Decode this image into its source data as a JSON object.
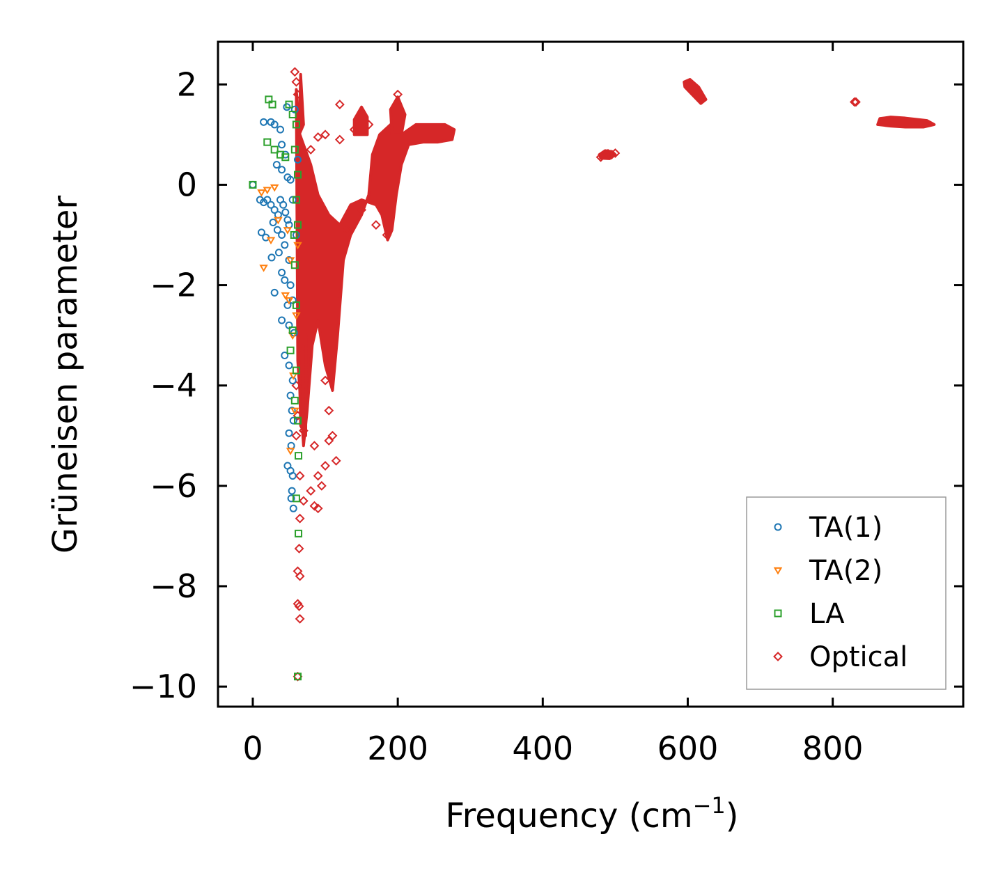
{
  "chart_data": {
    "type": "scatter",
    "title": "",
    "xlabel": "Frequency (cm",
    "xlabel_sup": "−1",
    "xlabel_end": ")",
    "ylabel": "Grüneisen parameter",
    "xlim": [
      -48,
      980
    ],
    "ylim": [
      -10.4,
      2.85
    ],
    "xticks": [
      0,
      200,
      400,
      600,
      800
    ],
    "xtick_labels": [
      "0",
      "200",
      "400",
      "600",
      "800"
    ],
    "yticks": [
      2,
      0,
      -2,
      -4,
      -6,
      -8,
      -10
    ],
    "ytick_labels": [
      "2",
      "0",
      "−2",
      "−4",
      "−6",
      "−8",
      "−10"
    ],
    "legend_position": "bottom-right",
    "series": [
      {
        "name": "TA(1)",
        "marker": "circle",
        "color": "#1f77b4",
        "points": [
          [
            0,
            0
          ],
          [
            15,
            1.25
          ],
          [
            25,
            1.25
          ],
          [
            30,
            1.2
          ],
          [
            38,
            1.1
          ],
          [
            40,
            0.8
          ],
          [
            45,
            0.6
          ],
          [
            33,
            0.4
          ],
          [
            40,
            0.3
          ],
          [
            48,
            0.15
          ],
          [
            52,
            0.1
          ],
          [
            10,
            -0.3
          ],
          [
            15,
            -0.35
          ],
          [
            20,
            -0.3
          ],
          [
            25,
            -0.4
          ],
          [
            30,
            -0.5
          ],
          [
            35,
            -0.6
          ],
          [
            38,
            -0.3
          ],
          [
            42,
            -0.4
          ],
          [
            45,
            -0.55
          ],
          [
            48,
            -0.7
          ],
          [
            50,
            -0.8
          ],
          [
            55,
            -0.3
          ],
          [
            28,
            -0.75
          ],
          [
            34,
            -0.9
          ],
          [
            40,
            -1.0
          ],
          [
            12,
            -0.95
          ],
          [
            18,
            -1.05
          ],
          [
            44,
            -1.2
          ],
          [
            36,
            -1.35
          ],
          [
            26,
            -1.45
          ],
          [
            50,
            -1.5
          ],
          [
            40,
            -1.75
          ],
          [
            44,
            -1.9
          ],
          [
            52,
            -2.0
          ],
          [
            30,
            -2.15
          ],
          [
            55,
            -2.3
          ],
          [
            48,
            -2.4
          ],
          [
            40,
            -2.7
          ],
          [
            50,
            -2.8
          ],
          [
            57,
            -2.95
          ],
          [
            44,
            -3.4
          ],
          [
            50,
            -3.6
          ],
          [
            55,
            -3.9
          ],
          [
            52,
            -4.2
          ],
          [
            54,
            -4.5
          ],
          [
            56,
            -4.7
          ],
          [
            50,
            -4.95
          ],
          [
            53,
            -5.2
          ],
          [
            48,
            -5.6
          ],
          [
            52,
            -5.7
          ],
          [
            55,
            -5.8
          ],
          [
            54,
            -6.1
          ],
          [
            53,
            -6.25
          ],
          [
            56,
            -6.45
          ],
          [
            60,
            -1.0
          ],
          [
            62,
            0.5
          ],
          [
            58,
            1.5
          ],
          [
            47,
            1.55
          ]
        ]
      },
      {
        "name": "TA(2)",
        "marker": "triangle-down",
        "color": "#ff7f0e",
        "points": [
          [
            12,
            -0.15
          ],
          [
            15,
            -1.65
          ],
          [
            20,
            -0.1
          ],
          [
            25,
            -1.1
          ],
          [
            30,
            -0.05
          ],
          [
            35,
            -0.7
          ],
          [
            45,
            -2.2
          ],
          [
            50,
            -2.3
          ],
          [
            48,
            -0.9
          ],
          [
            52,
            -1.5
          ],
          [
            55,
            -3.0
          ],
          [
            56,
            -3.8
          ],
          [
            52,
            -5.3
          ],
          [
            58,
            -4.5
          ],
          [
            60,
            -2.6
          ],
          [
            62,
            -1.2
          ]
        ]
      },
      {
        "name": "LA",
        "marker": "square",
        "color": "#2ca02c",
        "points": [
          [
            0,
            0
          ],
          [
            22,
            1.7
          ],
          [
            27,
            1.6
          ],
          [
            50,
            1.6
          ],
          [
            55,
            1.4
          ],
          [
            20,
            0.85
          ],
          [
            30,
            0.7
          ],
          [
            38,
            0.6
          ],
          [
            45,
            0.55
          ],
          [
            58,
            0.7
          ],
          [
            60,
            -0.3
          ],
          [
            62,
            -0.8
          ],
          [
            58,
            -1.6
          ],
          [
            60,
            -2.4
          ],
          [
            55,
            -2.9
          ],
          [
            52,
            -3.3
          ],
          [
            60,
            -3.7
          ],
          [
            58,
            -4.3
          ],
          [
            62,
            -4.7
          ],
          [
            63,
            -5.4
          ],
          [
            60,
            -6.25
          ],
          [
            63,
            -6.95
          ],
          [
            62,
            -9.8
          ],
          [
            57,
            -1.0
          ],
          [
            62,
            0.2
          ],
          [
            60,
            1.2
          ]
        ]
      },
      {
        "name": "Optical",
        "marker": "diamond",
        "color": "#d62728",
        "points": [
          [
            58,
            2.25
          ],
          [
            60,
            2.05
          ],
          [
            62,
            1.8
          ],
          [
            120,
            1.6
          ],
          [
            200,
            1.8
          ],
          [
            60,
            -4.0
          ],
          [
            62,
            -4.6
          ],
          [
            60,
            -5.0
          ],
          [
            65,
            -5.8
          ],
          [
            70,
            -6.3
          ],
          [
            65,
            -6.65
          ],
          [
            64,
            -7.25
          ],
          [
            62,
            -7.7
          ],
          [
            65,
            -7.8
          ],
          [
            62,
            -8.35
          ],
          [
            64,
            -8.4
          ],
          [
            65,
            -8.65
          ],
          [
            62,
            -9.8
          ],
          [
            85,
            -5.2
          ],
          [
            90,
            -5.8
          ],
          [
            95,
            -6.0
          ],
          [
            100,
            -5.6
          ],
          [
            105,
            -5.1
          ],
          [
            110,
            -5.0
          ],
          [
            115,
            -5.5
          ],
          [
            85,
            -6.4
          ],
          [
            90,
            -6.45
          ],
          [
            80,
            -6.1
          ],
          [
            70,
            -4.9
          ],
          [
            100,
            -3.9
          ],
          [
            105,
            -4.5
          ],
          [
            150,
            -0.5
          ],
          [
            170,
            -0.8
          ],
          [
            185,
            -1.0
          ],
          [
            130,
            -0.9
          ],
          [
            80,
            0.7
          ],
          [
            90,
            0.95
          ],
          [
            100,
            1.0
          ],
          [
            120,
            0.9
          ],
          [
            140,
            1.1
          ],
          [
            160,
            1.2
          ],
          [
            480,
            0.55
          ],
          [
            485,
            0.6
          ],
          [
            490,
            0.62
          ],
          [
            495,
            0.6
          ],
          [
            500,
            0.63
          ],
          [
            830,
            1.65
          ],
          [
            832,
            1.65
          ]
        ]
      }
    ]
  }
}
